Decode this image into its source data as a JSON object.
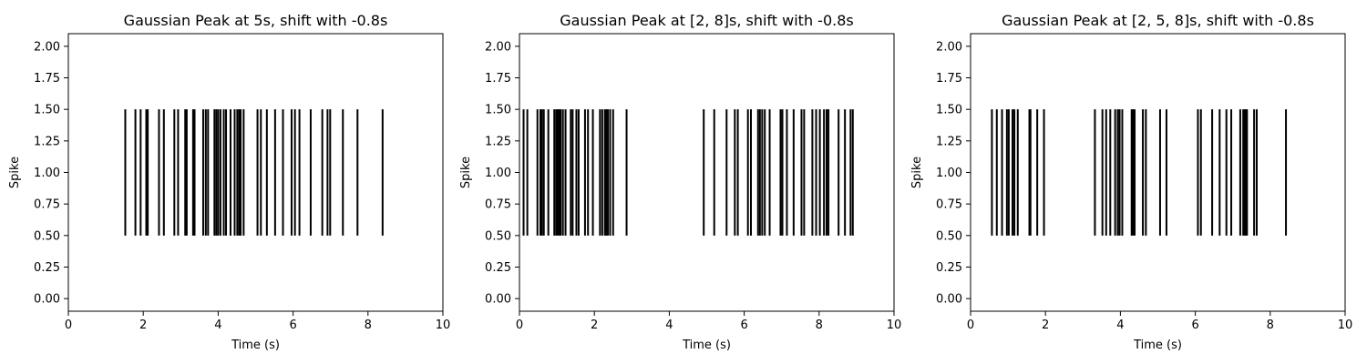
{
  "chart_data": [
    {
      "type": "eventplot",
      "title": "Gaussian Peak at 5s, shift with -0.8s",
      "xlabel": "Time (s)",
      "ylabel": "Spike",
      "xlim": [
        0,
        10
      ],
      "ylim": [
        -0.1,
        2.1
      ],
      "xticks": [
        "0",
        "2",
        "4",
        "6",
        "8",
        "10"
      ],
      "yticks": [
        "0.00",
        "0.25",
        "0.50",
        "0.75",
        "1.00",
        "1.25",
        "1.50",
        "1.75",
        "2.00"
      ],
      "line_offset": 1.0,
      "line_length": 1.0,
      "color": "#000000",
      "events": [
        1.52,
        1.79,
        1.93,
        2.08,
        2.12,
        2.42,
        2.55,
        2.83,
        2.93,
        3.12,
        3.16,
        3.33,
        3.37,
        3.6,
        3.67,
        3.73,
        3.9,
        3.95,
        4.0,
        4.06,
        4.15,
        4.21,
        4.33,
        4.44,
        4.51,
        4.56,
        4.6,
        4.68,
        5.05,
        5.14,
        5.3,
        5.52,
        5.73,
        5.96,
        6.05,
        6.17,
        6.47,
        6.78,
        6.92,
        6.99,
        7.33,
        7.72,
        8.39
      ]
    },
    {
      "type": "eventplot",
      "title": "Gaussian Peak at [2, 8]s, shift with -0.8s",
      "xlabel": "Time (s)",
      "ylabel": "Spike",
      "xlim": [
        0,
        10
      ],
      "ylim": [
        -0.1,
        2.1
      ],
      "xticks": [
        "0",
        "2",
        "4",
        "6",
        "8",
        "10"
      ],
      "yticks": [
        "0.00",
        "0.25",
        "0.50",
        "0.75",
        "1.00",
        "1.25",
        "1.50",
        "1.75",
        "2.00"
      ],
      "line_offset": 1.0,
      "line_length": 1.0,
      "color": "#000000",
      "events": [
        0.11,
        0.21,
        0.48,
        0.56,
        0.6,
        0.65,
        0.77,
        0.93,
        0.98,
        1.02,
        1.06,
        1.1,
        1.16,
        1.23,
        1.37,
        1.42,
        1.52,
        1.58,
        1.75,
        1.83,
        1.96,
        2.15,
        2.21,
        2.28,
        2.32,
        2.36,
        2.42,
        2.5,
        2.86,
        4.92,
        5.2,
        5.53,
        5.75,
        5.83,
        6.1,
        6.18,
        6.37,
        6.42,
        6.48,
        6.55,
        6.68,
        6.97,
        7.02,
        7.14,
        7.32,
        7.53,
        7.6,
        7.82,
        7.92,
        8.02,
        8.13,
        8.2,
        8.25,
        8.52,
        8.69,
        8.84,
        8.9
      ]
    },
    {
      "type": "eventplot",
      "title": "Gaussian Peak at [2, 5, 8]s, shift with -0.8s",
      "xlabel": "Time (s)",
      "ylabel": "Spike",
      "xlim": [
        0,
        10
      ],
      "ylim": [
        -0.1,
        2.1
      ],
      "xticks": [
        "0",
        "2",
        "4",
        "6",
        "8",
        "10"
      ],
      "yticks": [
        "0.00",
        "0.25",
        "0.50",
        "0.75",
        "1.00",
        "1.25",
        "1.50",
        "1.75",
        "2.00"
      ],
      "line_offset": 1.0,
      "line_length": 1.0,
      "color": "#000000",
      "events": [
        0.57,
        0.7,
        0.84,
        0.97,
        1.02,
        1.12,
        1.17,
        1.26,
        1.57,
        1.6,
        1.78,
        1.96,
        3.32,
        3.52,
        3.62,
        3.73,
        3.86,
        3.93,
        3.98,
        4.05,
        4.3,
        4.34,
        4.38,
        4.6,
        4.68,
        5.06,
        5.23,
        6.07,
        6.15,
        6.45,
        6.65,
        6.83,
        6.96,
        7.2,
        7.28,
        7.32,
        7.35,
        7.38,
        7.57,
        7.64,
        8.42
      ]
    }
  ]
}
